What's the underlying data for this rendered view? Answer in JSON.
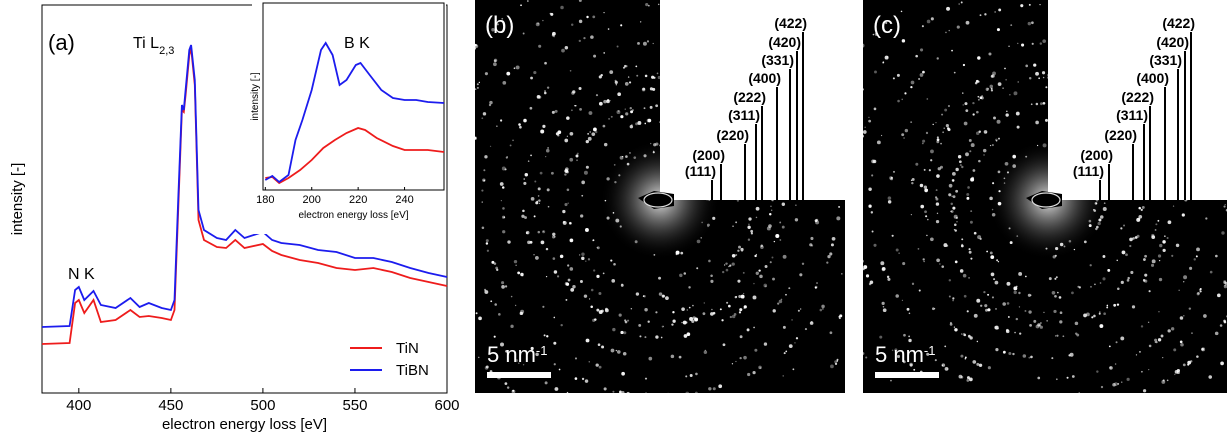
{
  "chart_data": [
    {
      "type": "line",
      "panel_label": "(a)",
      "xlabel": "electron energy loss [eV]",
      "ylabel": "intensity [-]",
      "xlim": [
        380,
        600
      ],
      "xticks": [
        400,
        450,
        500,
        550,
        600
      ],
      "ylim": [
        0,
        388
      ],
      "annotations": [
        {
          "text": "N K"
        },
        {
          "text": "Ti L",
          "subscript": "2,3"
        }
      ],
      "legend": "lower right",
      "x": [
        380,
        395,
        398,
        400,
        403,
        408,
        412,
        420,
        428,
        433,
        438,
        445,
        450,
        452,
        454,
        456,
        457,
        458,
        460,
        461,
        463,
        465,
        468,
        475,
        480,
        485,
        490,
        500,
        505,
        510,
        520,
        530,
        540,
        550,
        560,
        570,
        580,
        590,
        600
      ],
      "series": [
        {
          "name": "TiN",
          "color": "#ee1c1c",
          "values": [
            49,
            50,
            90,
            93,
            80,
            93,
            71,
            73,
            83,
            76,
            77,
            75,
            73,
            83,
            183,
            283,
            281,
            298,
            338,
            345,
            308,
            173,
            153,
            146,
            145,
            153,
            145,
            149,
            142,
            138,
            133,
            130,
            125,
            123,
            125,
            121,
            115,
            111,
            107
          ]
        },
        {
          "name": "TiBN",
          "color": "#1c1cee",
          "values": [
            66,
            67,
            103,
            106,
            93,
            102,
            88,
            85,
            95,
            86,
            90,
            85,
            83,
            93,
            193,
            288,
            283,
            303,
            343,
            348,
            313,
            183,
            163,
            155,
            153,
            163,
            155,
            161,
            153,
            150,
            148,
            143,
            141,
            135,
            135,
            131,
            125,
            120,
            116
          ]
        }
      ]
    },
    {
      "type": "line",
      "title": "B K",
      "xlabel": "electron energy loss [eV]",
      "ylabel": "intensity [-]",
      "xlim": [
        179,
        257
      ],
      "xticks": [
        180,
        200,
        220,
        240
      ],
      "ylim": [
        0,
        187
      ],
      "series": [
        {
          "name": "TiN",
          "color": "#ee1c1c",
          "x": [
            180,
            183,
            186,
            190,
            195,
            200,
            205,
            210,
            215,
            220,
            223,
            228,
            235,
            240,
            250,
            257
          ],
          "values": [
            12,
            13,
            7,
            12,
            20,
            30,
            42,
            50,
            57,
            62,
            60,
            52,
            44,
            40,
            40,
            38
          ]
        },
        {
          "name": "TiBN",
          "color": "#1c1cee",
          "x": [
            180,
            183,
            186,
            190,
            193,
            196,
            200,
            204,
            206,
            209,
            212,
            215,
            219,
            221,
            225,
            230,
            235,
            240,
            245,
            250,
            257
          ],
          "values": [
            10,
            14,
            8,
            15,
            50,
            70,
            100,
            140,
            147,
            135,
            105,
            110,
            125,
            127,
            115,
            100,
            92,
            90,
            90,
            88,
            87
          ]
        }
      ]
    }
  ],
  "panels": [
    {
      "label": "(b)",
      "scale_bar": {
        "text": "5 nm",
        "exponent": "-1"
      },
      "indices": [
        "(111)",
        "(200)",
        "(220)",
        "(311)",
        "(222)",
        "(400)",
        "(331)",
        "(420)",
        "(422)"
      ]
    },
    {
      "label": "(c)",
      "scale_bar": {
        "text": "5 nm",
        "exponent": "-1"
      },
      "indices": [
        "(111)",
        "(200)",
        "(220)",
        "(311)",
        "(222)",
        "(400)",
        "(331)",
        "(420)",
        "(422)"
      ]
    }
  ]
}
